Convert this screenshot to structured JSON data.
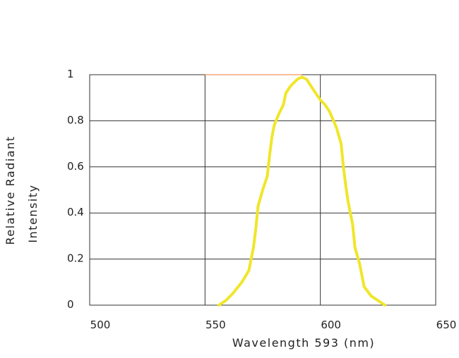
{
  "chart_data": {
    "type": "line",
    "title": "",
    "xlabel": "Wavelength 593  (nm)",
    "ylabel_line1": "Relative Radiant",
    "ylabel_line2": "Intensity",
    "xlim": [
      500,
      650
    ],
    "ylim": [
      0,
      1
    ],
    "x_ticks": [
      500,
      550,
      600,
      650
    ],
    "x_tick_labels": [
      "500",
      "550",
      "600",
      "650"
    ],
    "y_ticks": [
      0,
      0.2,
      0.4,
      0.6,
      0.8,
      1
    ],
    "y_tick_labels": [
      "0",
      "0.2",
      "0.4",
      "0.6",
      "0.8",
      "1"
    ],
    "grid": true,
    "series": [
      {
        "color": "#f0e62a",
        "points": [
          [
            556,
            0.0
          ],
          [
            559,
            0.02
          ],
          [
            562,
            0.05
          ],
          [
            566,
            0.1
          ],
          [
            569,
            0.15
          ],
          [
            571,
            0.25
          ],
          [
            572,
            0.33
          ],
          [
            573,
            0.43
          ],
          [
            575,
            0.5
          ],
          [
            577,
            0.56
          ],
          [
            578,
            0.65
          ],
          [
            579,
            0.73
          ],
          [
            580,
            0.78
          ],
          [
            582,
            0.83
          ],
          [
            584,
            0.87
          ],
          [
            585,
            0.92
          ],
          [
            587,
            0.95
          ],
          [
            590,
            0.98
          ],
          [
            592,
            0.99
          ],
          [
            594,
            0.98
          ],
          [
            596,
            0.95
          ],
          [
            598,
            0.92
          ],
          [
            600,
            0.89
          ],
          [
            602,
            0.87
          ],
          [
            604,
            0.84
          ],
          [
            607,
            0.77
          ],
          [
            609,
            0.7
          ],
          [
            610,
            0.6
          ],
          [
            611,
            0.52
          ],
          [
            612,
            0.45
          ],
          [
            614,
            0.35
          ],
          [
            615,
            0.25
          ],
          [
            617,
            0.18
          ],
          [
            619,
            0.08
          ],
          [
            622,
            0.04
          ],
          [
            628,
            0.0
          ]
        ]
      }
    ],
    "annotations": [
      {
        "type": "hline",
        "y": 1,
        "x_from": 550,
        "x_to": 592,
        "color": "#f4a878"
      }
    ]
  }
}
